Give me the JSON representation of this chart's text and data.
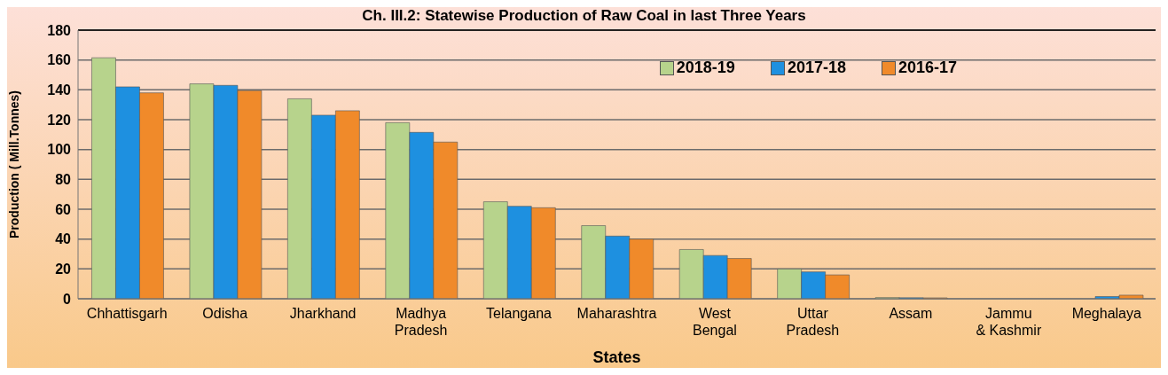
{
  "chart_data": {
    "type": "bar",
    "title": "Ch. III.2: Statewise Production of Raw Coal in last Three Years",
    "xlabel": "States",
    "ylabel": "Production ( Mill.Tonnes)",
    "categories": [
      "Chhattisgarh",
      "Odisha",
      "Jharkhand",
      "Madhya Pradesh",
      "Telangana",
      "Maharashtra",
      "West Bengal",
      "Uttar Pradesh",
      "Assam",
      "Jammu & Kashmir",
      "Meghalaya"
    ],
    "series": [
      {
        "name": "2018-19",
        "color": "#b7d38c",
        "values": [
          161.5,
          144,
          134,
          118,
          65,
          49,
          33,
          20,
          0.8,
          0,
          0
        ]
      },
      {
        "name": "2017-18",
        "color": "#1e90e0",
        "values": [
          142,
          143,
          123,
          111.5,
          62,
          42,
          29,
          18,
          0.7,
          0,
          1.5
        ]
      },
      {
        "name": "2016-17",
        "color": "#f08a2a",
        "values": [
          138,
          139.5,
          126,
          105,
          61,
          40,
          27,
          16,
          0.6,
          0,
          2.4
        ]
      }
    ],
    "ylim": [
      0,
      180
    ],
    "yticks": [
      0,
      20,
      40,
      60,
      80,
      100,
      120,
      140,
      160,
      180
    ],
    "grid": "y",
    "legend": "top right"
  }
}
